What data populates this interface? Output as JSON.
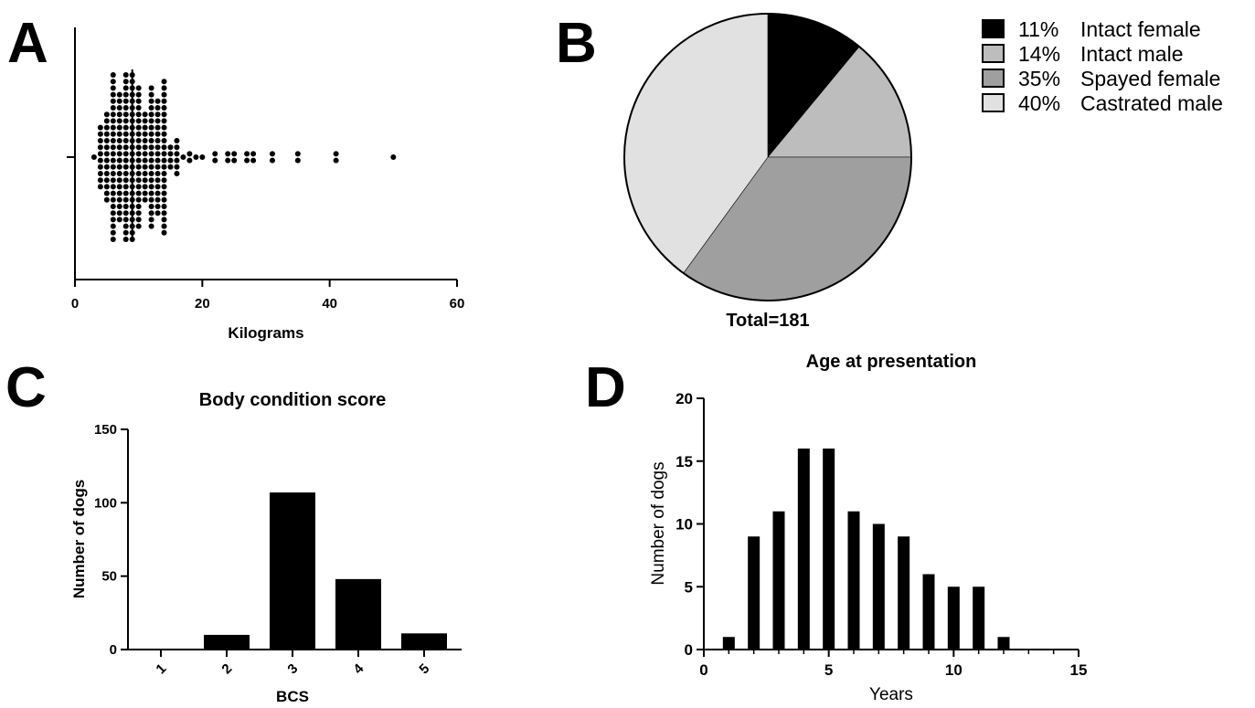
{
  "panels": {
    "a": {
      "letter": "A"
    },
    "b": {
      "letter": "B"
    },
    "c": {
      "letter": "C"
    },
    "d": {
      "letter": "D"
    }
  },
  "chart_data": [
    {
      "id": "A",
      "type": "scatter",
      "title": "",
      "xlabel": "Kilograms",
      "ylabel": "",
      "xlim": [
        0,
        60
      ],
      "xticks": [
        "0",
        "20",
        "40",
        "60"
      ],
      "median": 9,
      "columns": [
        {
          "x": 3,
          "n": 1
        },
        {
          "x": 4,
          "n": 10
        },
        {
          "x": 5,
          "n": 14
        },
        {
          "x": 6,
          "n": 26
        },
        {
          "x": 7,
          "n": 20
        },
        {
          "x": 8,
          "n": 26
        },
        {
          "x": 9,
          "n": 26
        },
        {
          "x": 10,
          "n": 22
        },
        {
          "x": 11,
          "n": 14
        },
        {
          "x": 12,
          "n": 22
        },
        {
          "x": 13,
          "n": 18
        },
        {
          "x": 14,
          "n": 24
        },
        {
          "x": 15,
          "n": 4
        },
        {
          "x": 16,
          "n": 6
        },
        {
          "x": 17,
          "n": 1
        },
        {
          "x": 18,
          "n": 2
        },
        {
          "x": 19,
          "n": 1
        },
        {
          "x": 20,
          "n": 1
        },
        {
          "x": 22,
          "n": 2
        },
        {
          "x": 24,
          "n": 2
        },
        {
          "x": 25,
          "n": 2
        },
        {
          "x": 27,
          "n": 2
        },
        {
          "x": 28,
          "n": 2
        },
        {
          "x": 31,
          "n": 2
        },
        {
          "x": 35,
          "n": 2
        },
        {
          "x": 41,
          "n": 2
        },
        {
          "x": 50,
          "n": 1
        }
      ]
    },
    {
      "id": "B",
      "type": "pie",
      "total_label": "Total=181",
      "slices": [
        {
          "pct": "11%",
          "label": "Intact female",
          "value": 11,
          "color": "#000000"
        },
        {
          "pct": "14%",
          "label": "Intact male",
          "value": 14,
          "color": "#bdbdbd"
        },
        {
          "pct": "35%",
          "label": "Spayed female",
          "value": 35,
          "color": "#9f9f9f"
        },
        {
          "pct": "40%",
          "label": "Castrated male",
          "value": 40,
          "color": "#e1e1e1"
        }
      ]
    },
    {
      "id": "C",
      "type": "bar",
      "title": "Body condition score",
      "xlabel": "BCS",
      "ylabel": "Number of dogs",
      "ylim": [
        0,
        150
      ],
      "yticks": [
        "0",
        "50",
        "100",
        "150"
      ],
      "categories": [
        "1",
        "2",
        "3",
        "4",
        "5"
      ],
      "values": [
        0,
        10,
        107,
        48,
        11
      ]
    },
    {
      "id": "D",
      "type": "bar",
      "title": "Age at presentation",
      "xlabel": "Years",
      "ylabel": "Number of dogs",
      "xlim": [
        0,
        15
      ],
      "ylim": [
        0,
        20
      ],
      "xticks": [
        "0",
        "5",
        "10",
        "15"
      ],
      "yticks": [
        "0",
        "5",
        "10",
        "15",
        "20"
      ],
      "x": [
        1,
        2,
        3,
        4,
        5,
        6,
        7,
        8,
        9,
        10,
        11,
        12
      ],
      "values": [
        1,
        9,
        11,
        16,
        16,
        11,
        10,
        9,
        6,
        5,
        5,
        1
      ]
    }
  ]
}
